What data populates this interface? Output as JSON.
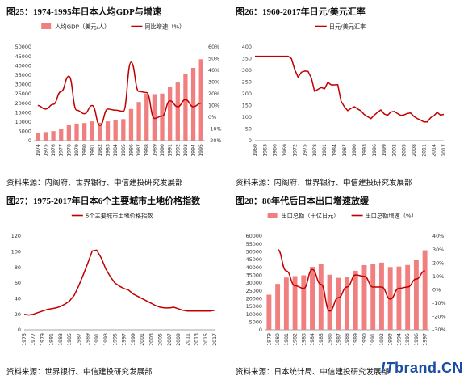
{
  "panels": {
    "p1": {
      "title": "图25：1974-1995年日本人均GDP与增速",
      "source": "资料来源：内阁府、世界银行、中信建投研究发展部"
    },
    "p2": {
      "title": "图26：1960-2017年日元/美元汇率",
      "source": "资料来源：内阁府、世界银行、中信建投研究发展部"
    },
    "p3": {
      "title": "图27：1975-2017年日本6个主要城市土地价格指数",
      "source": "资料来源：世界银行、中信建投研究发展部"
    },
    "p4": {
      "title": "图28：80年代后日本出口增速放缓",
      "source": "资料来源：日本统计局、中信建投研究发展部"
    }
  },
  "watermark": {
    "brand_it": "IT",
    "brand_rest": "brand.CN"
  },
  "chart_data": [
    {
      "type": "bar",
      "id": "p1",
      "title": "",
      "categories": [
        "1974",
        "1975",
        "1976",
        "1977",
        "1978",
        "1979",
        "1980",
        "1981",
        "1982",
        "1983",
        "1984",
        "1985",
        "1986",
        "1987",
        "1988",
        "1989",
        "1990",
        "1991",
        "1992",
        "1993",
        "1994",
        "1995"
      ],
      "x_tick_labels": [
        "1974",
        "1975",
        "1976",
        "1977",
        "1978",
        "1979",
        "1980",
        "1981",
        "1982",
        "1983",
        "1984",
        "1985",
        "1986",
        "1987",
        "1988",
        "1989",
        "1990",
        "1991",
        "1992",
        "1993",
        "1994",
        "1995"
      ],
      "series": [
        {
          "name": "人均GDP（美元/人）",
          "type": "bar",
          "axis": "left",
          "color": "#f08080",
          "values": [
            4300,
            4600,
            5100,
            6300,
            8600,
            9100,
            9400,
            10300,
            9600,
            10300,
            10900,
            11500,
            16900,
            20600,
            25000,
            24800,
            25100,
            28500,
            31000,
            35500,
            38800,
            43400
          ]
        },
        {
          "name": "同比增速（%）",
          "type": "line",
          "axis": "right",
          "color": "#c00000",
          "values": [
            10,
            7,
            11,
            22,
            35,
            6,
            3,
            10,
            -7,
            7,
            6,
            5,
            47,
            22,
            21,
            -1,
            1,
            14,
            9,
            15,
            9,
            12
          ]
        }
      ],
      "ylim_left": [
        0,
        50000
      ],
      "yticks_left": [
        0,
        5000,
        10000,
        15000,
        20000,
        25000,
        30000,
        35000,
        40000,
        45000,
        50000
      ],
      "ylim_right": [
        -20,
        60
      ],
      "yticks_right": [
        -20,
        -10,
        0,
        10,
        20,
        30,
        40,
        50,
        60
      ],
      "yticks_right_labels": [
        "-20%",
        "-10%",
        "0%",
        "10%",
        "20%",
        "30%",
        "40%",
        "50%",
        "60%"
      ],
      "legend": "top"
    },
    {
      "type": "line",
      "id": "p2",
      "title": "",
      "x": [
        1960,
        1961,
        1962,
        1963,
        1964,
        1965,
        1966,
        1967,
        1968,
        1969,
        1970,
        1971,
        1972,
        1973,
        1974,
        1975,
        1976,
        1977,
        1978,
        1979,
        1980,
        1981,
        1982,
        1983,
        1984,
        1985,
        1986,
        1987,
        1988,
        1989,
        1990,
        1991,
        1992,
        1993,
        1994,
        1995,
        1996,
        1997,
        1998,
        1999,
        2000,
        2001,
        2002,
        2003,
        2004,
        2005,
        2006,
        2007,
        2008,
        2009,
        2010,
        2011,
        2012,
        2013,
        2014,
        2015,
        2016,
        2017
      ],
      "x_tick_labels": [
        "1960",
        "1963",
        "1966",
        "1969",
        "1972",
        "1975",
        "1978",
        "1981",
        "1984",
        "1987",
        "1990",
        "1993",
        "1996",
        "1999",
        "2002",
        "2005",
        "2008",
        "2011",
        "2014",
        "2017"
      ],
      "series": [
        {
          "name": "日元/美元汇率",
          "color": "#c00000",
          "values": [
            360,
            360,
            360,
            360,
            360,
            360,
            360,
            360,
            360,
            360,
            360,
            350,
            303,
            271,
            292,
            297,
            296,
            268,
            210,
            219,
            227,
            221,
            249,
            238,
            238,
            239,
            168,
            145,
            128,
            138,
            145,
            135,
            127,
            111,
            102,
            94,
            109,
            121,
            131,
            114,
            108,
            122,
            125,
            116,
            108,
            110,
            116,
            118,
            103,
            94,
            88,
            80,
            80,
            98,
            106,
            121,
            109,
            112
          ]
        }
      ],
      "ylim": [
        0,
        400
      ],
      "yticks": [
        0,
        50,
        100,
        150,
        200,
        250,
        300,
        350,
        400
      ],
      "legend": "top"
    },
    {
      "type": "line",
      "id": "p3",
      "title": "",
      "x": [
        1975,
        1976,
        1977,
        1978,
        1979,
        1980,
        1981,
        1982,
        1983,
        1984,
        1985,
        1986,
        1987,
        1988,
        1989,
        1990,
        1991,
        1992,
        1993,
        1994,
        1995,
        1996,
        1997,
        1998,
        1999,
        2000,
        2001,
        2002,
        2003,
        2004,
        2005,
        2006,
        2007,
        2008,
        2009,
        2010,
        2011,
        2012,
        2013,
        2014,
        2015,
        2016,
        2017
      ],
      "x_tick_labels": [
        "1975",
        "1977",
        "1979",
        "1981",
        "1983",
        "1985",
        "1987",
        "1989",
        "1991",
        "1993",
        "1995",
        "1997",
        "1999",
        "2001",
        "2003",
        "2005",
        "2007",
        "2009",
        "2011",
        "2013",
        "2015",
        "2017"
      ],
      "series": [
        {
          "name": "6个主要城市土地价格指数",
          "color": "#c00000",
          "values": [
            20,
            19,
            20,
            22,
            24,
            26,
            27,
            28,
            30,
            33,
            37,
            44,
            56,
            70,
            85,
            101,
            102,
            92,
            78,
            68,
            60,
            56,
            53,
            51,
            46,
            43,
            40,
            37,
            34,
            31,
            29,
            28,
            28,
            29,
            27,
            25,
            24,
            24,
            24,
            24,
            24,
            24,
            25
          ]
        }
      ],
      "ylim": [
        0,
        120
      ],
      "yticks": [
        0,
        20,
        40,
        60,
        80,
        100,
        120
      ],
      "legend": "top"
    },
    {
      "type": "bar",
      "id": "p4",
      "title": "",
      "categories": [
        "1979",
        "1980",
        "1981",
        "1982",
        "1983",
        "1984",
        "1985",
        "1986",
        "1987",
        "1988",
        "1989",
        "1990",
        "1991",
        "1992",
        "1993",
        "1994",
        "1995",
        "1996",
        "1997"
      ],
      "x_tick_labels": [
        "1979",
        "1980",
        "1981",
        "1982",
        "1983",
        "1984",
        "1985",
        "1986",
        "1987",
        "1988",
        "1989",
        "1990",
        "1991",
        "1992",
        "1993",
        "1994",
        "1995",
        "1996",
        "1997"
      ],
      "series": [
        {
          "name": "出口总额（十亿日元）",
          "type": "bar",
          "axis": "left",
          "color": "#f08080",
          "values": [
            22500,
            29400,
            33500,
            34400,
            34900,
            40300,
            41900,
            35300,
            33300,
            33900,
            37800,
            41400,
            42300,
            43000,
            40200,
            40500,
            41500,
            44700,
            50900
          ]
        },
        {
          "name": "出口总额增速（%）",
          "type": "line",
          "axis": "right",
          "color": "#c00000",
          "values": [
            null,
            30,
            14,
            3,
            1,
            15,
            4,
            -16,
            -6,
            2,
            11,
            10,
            2,
            2,
            -7,
            1,
            2,
            8,
            14
          ]
        }
      ],
      "ylim_left": [
        0,
        60000
      ],
      "yticks_left": [
        0,
        5000,
        10000,
        15000,
        20000,
        25000,
        30000,
        35000,
        40000,
        45000,
        50000,
        55000,
        60000
      ],
      "ylim_right": [
        -30,
        40
      ],
      "yticks_right": [
        -30,
        -20,
        -10,
        0,
        10,
        20,
        30,
        40
      ],
      "yticks_right_labels": [
        "-30%",
        "-20%",
        "-10%",
        "0%",
        "10%",
        "20%",
        "30%",
        "40%"
      ],
      "legend": "top"
    }
  ]
}
